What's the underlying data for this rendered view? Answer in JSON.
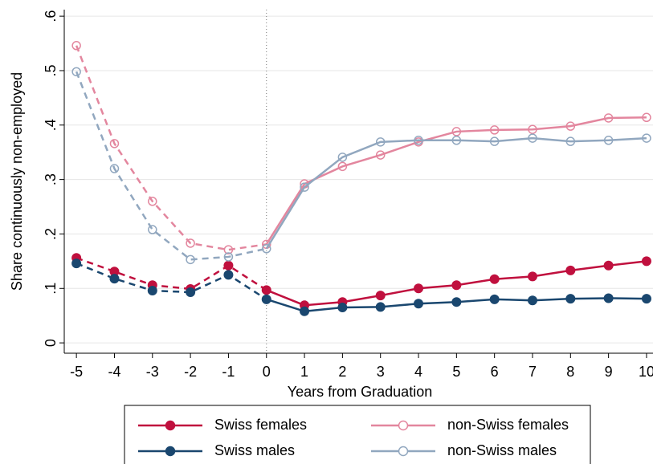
{
  "chart_data": {
    "type": "line",
    "x_label": "Years from Graduation",
    "y_label": "Share continuously non-employed",
    "x": [
      -5,
      -4,
      -3,
      -2,
      -1,
      0,
      1,
      2,
      3,
      4,
      5,
      6,
      7,
      8,
      9,
      10
    ],
    "series": [
      {
        "name": "Swiss females",
        "color": "#c0103e",
        "marker": "filled",
        "values": [
          0.156,
          0.131,
          0.106,
          0.099,
          0.142,
          0.097,
          0.069,
          0.075,
          0.087,
          0.1,
          0.106,
          0.117,
          0.122,
          0.133,
          0.142,
          0.15
        ]
      },
      {
        "name": "Swiss males",
        "color": "#1a476f",
        "marker": "filled",
        "values": [
          0.146,
          0.118,
          0.096,
          0.093,
          0.125,
          0.08,
          0.058,
          0.065,
          0.066,
          0.072,
          0.075,
          0.08,
          0.078,
          0.081,
          0.082,
          0.081
        ]
      },
      {
        "name": "non-Swiss females",
        "color": "#e3869e",
        "marker": "hollow",
        "values": [
          0.546,
          0.366,
          0.26,
          0.183,
          0.171,
          0.181,
          0.292,
          0.324,
          0.345,
          0.369,
          0.388,
          0.391,
          0.392,
          0.398,
          0.413,
          0.414
        ]
      },
      {
        "name": "non-Swiss males",
        "color": "#91a7bf",
        "marker": "hollow",
        "values": [
          0.498,
          0.32,
          0.208,
          0.153,
          0.158,
          0.173,
          0.286,
          0.341,
          0.369,
          0.372,
          0.372,
          0.37,
          0.376,
          0.37,
          0.372,
          0.376
        ]
      }
    ],
    "xlim": [
      -5.32,
      10.17
    ],
    "xticks": [
      -5,
      -4,
      -3,
      -2,
      -1,
      0,
      1,
      2,
      3,
      4,
      5,
      6,
      7,
      8,
      9,
      10
    ],
    "ylim": [
      -0.019,
      0.612
    ],
    "yticks": [
      0,
      {
        "value": 0.1,
        "label": ".1"
      },
      {
        "value": 0.2,
        "label": ".2"
      },
      {
        "value": 0.3,
        "label": ".3"
      },
      {
        "value": 0.4,
        "label": ".4"
      },
      {
        "value": 0.5,
        "label": ".5"
      },
      {
        "value": 0.6,
        "label": ".6"
      }
    ],
    "grid": true,
    "vline": 0,
    "legend": "bottom"
  }
}
